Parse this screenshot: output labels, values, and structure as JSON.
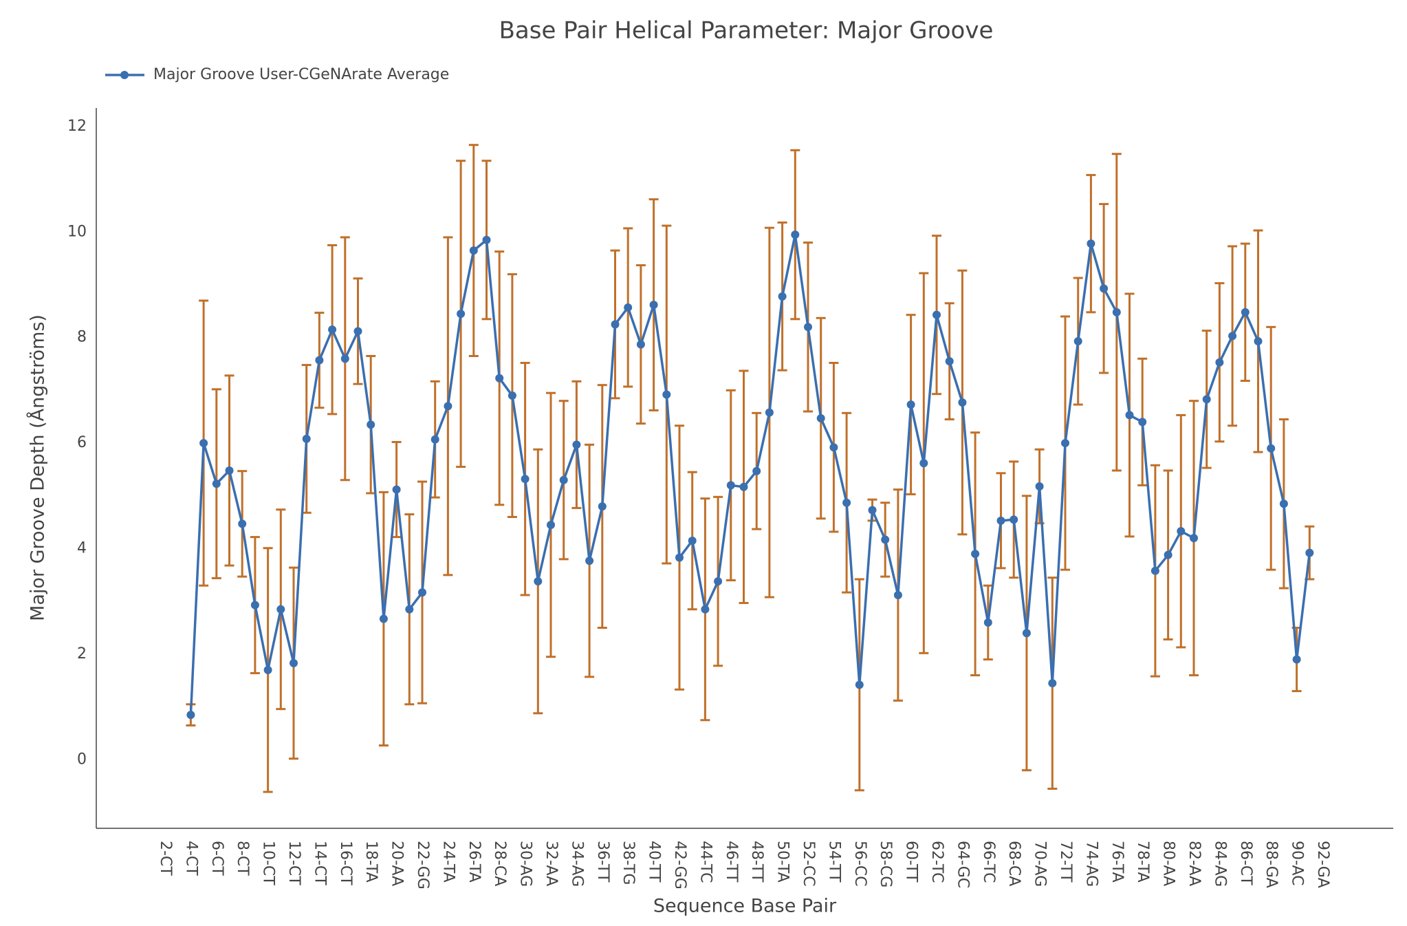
{
  "chart_data": {
    "type": "line",
    "title": "Base Pair Helical Parameter: Major Groove",
    "x_label": "Sequence Base Pair",
    "y_label": "Major Groove Depth (Ångströms)",
    "categories": [
      "2-CT",
      null,
      "4-CT",
      null,
      "6-CT",
      null,
      "8-CT",
      null,
      "10-CT",
      null,
      "12-CT",
      null,
      "14-CT",
      null,
      "16-CT",
      null,
      "18-TA",
      null,
      "20-AA",
      null,
      "22-GG",
      null,
      "24-TA",
      null,
      "26-TA",
      null,
      "28-CA",
      null,
      "30-AG",
      null,
      "32-AA",
      null,
      "34-AG",
      null,
      "36-TT",
      null,
      "38-TG",
      null,
      "40-TT",
      null,
      "42-GG",
      null,
      "44-TC",
      null,
      "46-TT",
      null,
      "48-TT",
      null,
      "50-TA",
      null,
      "52-CC",
      null,
      "54-TT",
      null,
      "56-CC",
      null,
      "58-CG",
      null,
      "60-TT",
      null,
      "62-TC",
      null,
      "64-GC",
      null,
      "66-TC",
      null,
      "68-CA",
      null,
      "70-AG",
      null,
      "72-TT",
      null,
      "74-AG",
      null,
      "76-TA",
      null,
      "78-TA",
      null,
      "80-AA",
      null,
      "82-AA",
      null,
      "84-AG",
      null,
      "86-CT",
      null,
      "88-GA",
      null,
      "90-AC",
      null,
      "92-GA"
    ],
    "series": [
      {
        "name": "Major Groove User-CGeNArate Average",
        "color": "#3a6fb0",
        "error_color": "#c0702a",
        "values": [
          null,
          null,
          0.85,
          6.0,
          5.23,
          5.48,
          4.47,
          2.93,
          1.7,
          2.85,
          1.83,
          6.08,
          7.57,
          8.15,
          7.6,
          8.12,
          6.35,
          2.67,
          5.12,
          2.85,
          3.17,
          6.07,
          6.7,
          8.45,
          9.65,
          9.85,
          7.23,
          6.9,
          5.32,
          3.38,
          4.45,
          5.3,
          5.97,
          3.77,
          4.8,
          8.25,
          8.57,
          7.87,
          8.62,
          6.92,
          3.83,
          4.15,
          2.85,
          3.38,
          5.2,
          5.17,
          5.47,
          6.58,
          8.78,
          9.95,
          8.2,
          6.47,
          5.92,
          4.87,
          1.42,
          4.73,
          4.17,
          3.12,
          6.73,
          5.62,
          8.43,
          7.55,
          6.77,
          3.9,
          2.6,
          4.53,
          4.55,
          2.4,
          5.18,
          1.45,
          6.0,
          7.93,
          9.78,
          8.93,
          8.48,
          6.53,
          6.4,
          3.58,
          3.88,
          4.33,
          4.2,
          6.83,
          7.53,
          8.03,
          8.48,
          7.93,
          5.9,
          4.85,
          1.9,
          3.92,
          null
        ],
        "errors": [
          null,
          null,
          0.2,
          2.7,
          1.79,
          1.8,
          1.0,
          1.29,
          2.31,
          1.89,
          1.81,
          1.4,
          0.9,
          1.6,
          2.3,
          1.0,
          1.3,
          2.4,
          0.9,
          1.8,
          2.1,
          1.1,
          3.2,
          2.9,
          2.0,
          1.5,
          2.4,
          2.3,
          2.2,
          2.5,
          2.5,
          1.5,
          1.2,
          2.2,
          2.3,
          1.4,
          1.5,
          1.5,
          2.0,
          3.2,
          2.5,
          1.3,
          2.1,
          1.6,
          1.8,
          2.2,
          1.1,
          3.5,
          1.4,
          1.6,
          1.6,
          1.9,
          1.6,
          1.7,
          2.0,
          0.2,
          0.7,
          2.0,
          1.7,
          3.6,
          1.5,
          1.1,
          2.5,
          2.3,
          0.7,
          0.9,
          1.1,
          2.6,
          0.7,
          2.0,
          2.4,
          1.2,
          1.3,
          1.6,
          3.0,
          2.3,
          1.2,
          2.0,
          1.6,
          2.2,
          2.6,
          1.3,
          1.5,
          1.7,
          1.3,
          2.1,
          2.3,
          1.6,
          0.6,
          0.5,
          null
        ]
      }
    ],
    "ylim": [
      -1.3,
      12.35
    ],
    "yticks": [
      0,
      2,
      4,
      6,
      8,
      10,
      12
    ],
    "grid": false,
    "legend": "top-left"
  }
}
